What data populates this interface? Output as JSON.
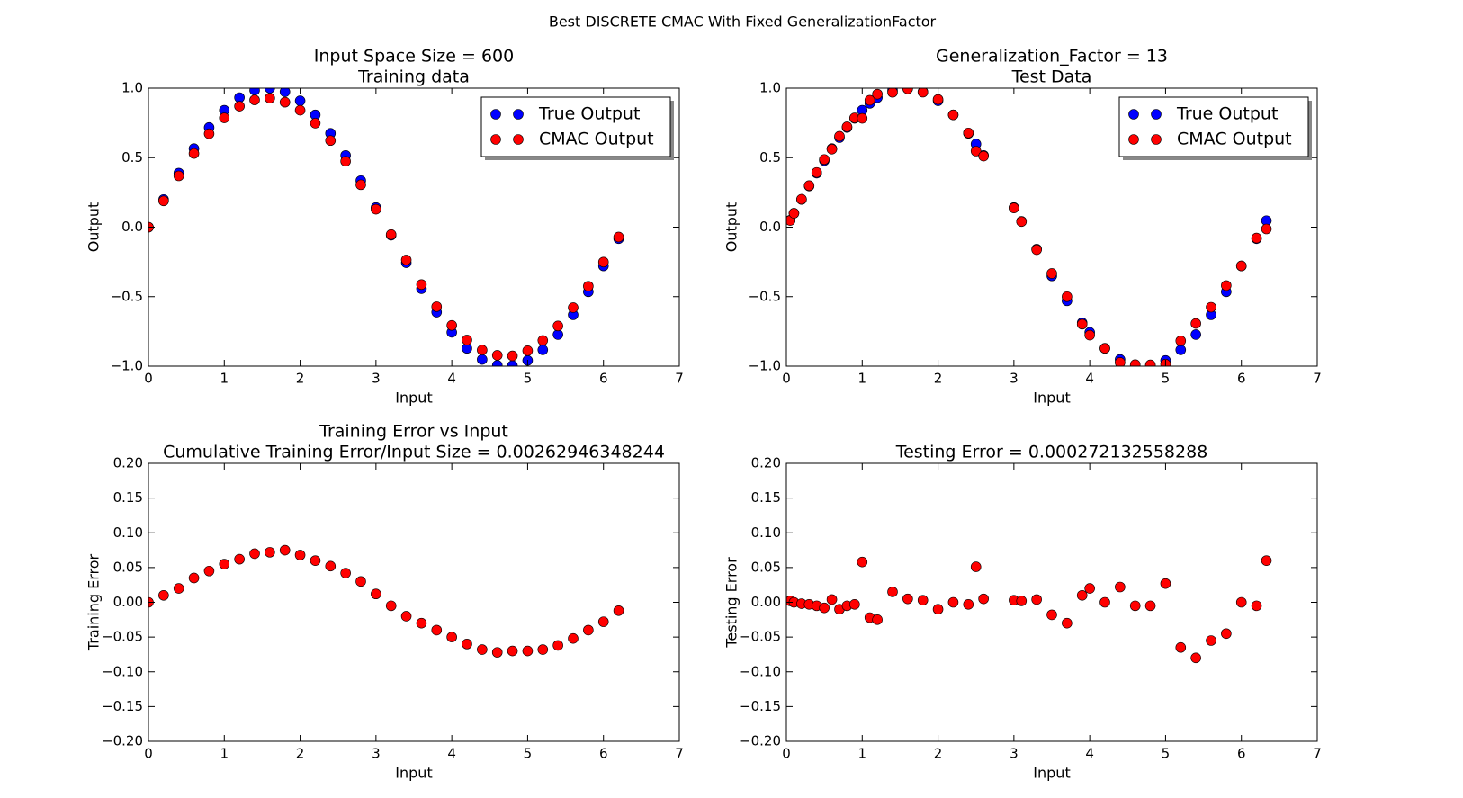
{
  "title": "Best DISCRETE CMAC With Fixed GeneralizationFactor",
  "chart_data": [
    {
      "type": "scatter",
      "title": "Input Space Size = 600",
      "subtitle": "Training data",
      "xlabel": "Input",
      "ylabel": "Output",
      "legend": "upper right",
      "xlim": [
        0,
        7
      ],
      "xticks": [
        0,
        1,
        2,
        3,
        4,
        5,
        6,
        7
      ],
      "ylim": [
        -1,
        1
      ],
      "yticks": [
        {
          "value": -1,
          "label": "−1.0"
        },
        {
          "value": -0.5,
          "label": "−0.5"
        },
        {
          "value": 0,
          "label": "0.0"
        },
        {
          "value": 0.5,
          "label": "0.5"
        },
        {
          "value": 1,
          "label": "1.0"
        }
      ],
      "series": [
        {
          "name": "True Output",
          "color": "#0000ff",
          "x": [
            0,
            0.2,
            0.4,
            0.6,
            0.8,
            1.0,
            1.2,
            1.4,
            1.6,
            1.8,
            2.0,
            2.2,
            2.4,
            2.6,
            2.8,
            3.0,
            3.2,
            3.4,
            3.6,
            3.8,
            4.0,
            4.2,
            4.4,
            4.6,
            4.8,
            5.0,
            5.2,
            5.4,
            5.6,
            5.8,
            6.0,
            6.2
          ],
          "values": [
            0,
            0.199,
            0.389,
            0.565,
            0.717,
            0.841,
            0.932,
            0.985,
            1.0,
            0.974,
            0.909,
            0.808,
            0.675,
            0.516,
            0.335,
            0.141,
            -0.058,
            -0.256,
            -0.443,
            -0.612,
            -0.757,
            -0.872,
            -0.952,
            -0.994,
            -0.996,
            -0.959,
            -0.883,
            -0.773,
            -0.631,
            -0.465,
            -0.279,
            -0.083
          ]
        },
        {
          "name": "CMAC Output",
          "color": "#ff0000",
          "x": [
            0,
            0.2,
            0.4,
            0.6,
            0.8,
            1.0,
            1.2,
            1.4,
            1.6,
            1.8,
            2.0,
            2.2,
            2.4,
            2.6,
            2.8,
            3.0,
            3.2,
            3.4,
            3.6,
            3.8,
            4.0,
            4.2,
            4.4,
            4.6,
            4.8,
            5.0,
            5.2,
            5.4,
            5.6,
            5.8,
            6.0,
            6.2
          ],
          "values": [
            0,
            0.189,
            0.369,
            0.53,
            0.672,
            0.786,
            0.87,
            0.915,
            0.928,
            0.899,
            0.841,
            0.748,
            0.623,
            0.474,
            0.305,
            0.129,
            -0.053,
            -0.236,
            -0.413,
            -0.572,
            -0.707,
            -0.812,
            -0.884,
            -0.922,
            -0.926,
            -0.889,
            -0.815,
            -0.711,
            -0.579,
            -0.425,
            -0.251,
            -0.071
          ]
        }
      ]
    },
    {
      "type": "scatter",
      "title": "Generalization_Factor = 13",
      "subtitle": "Test Data",
      "xlabel": "Input",
      "ylabel": "Output",
      "legend": "upper right",
      "xlim": [
        0,
        7
      ],
      "xticks": [
        0,
        1,
        2,
        3,
        4,
        5,
        6,
        7
      ],
      "ylim": [
        -1,
        1
      ],
      "yticks": [
        {
          "value": -1,
          "label": "−1.0"
        },
        {
          "value": -0.5,
          "label": "−0.5"
        },
        {
          "value": 0,
          "label": "0.0"
        },
        {
          "value": 0.5,
          "label": "0.5"
        },
        {
          "value": 1,
          "label": "1.0"
        }
      ],
      "series": [
        {
          "name": "True Output",
          "color": "#0000ff",
          "x": [
            0.05,
            0.1,
            0.2,
            0.3,
            0.4,
            0.5,
            0.6,
            0.7,
            0.8,
            0.9,
            1.0,
            1.1,
            1.2,
            1.4,
            1.6,
            1.8,
            2.0,
            2.2,
            2.4,
            2.5,
            2.6,
            3.0,
            3.1,
            3.3,
            3.5,
            3.7,
            3.9,
            4.0,
            4.2,
            4.4,
            4.6,
            4.8,
            5.0,
            5.2,
            5.4,
            5.6,
            5.8,
            6.0,
            6.2,
            6.33
          ],
          "values": [
            0.05,
            0.1,
            0.199,
            0.296,
            0.389,
            0.479,
            0.565,
            0.644,
            0.717,
            0.783,
            0.841,
            0.891,
            0.932,
            0.985,
            1.0,
            0.974,
            0.909,
            0.808,
            0.675,
            0.598,
            0.516,
            0.141,
            0.042,
            -0.158,
            -0.351,
            -0.53,
            -0.688,
            -0.757,
            -0.872,
            -0.952,
            -0.994,
            -0.996,
            -0.959,
            -0.883,
            -0.773,
            -0.631,
            -0.465,
            -0.279,
            -0.083,
            0.047
          ]
        },
        {
          "name": "CMAC Output",
          "color": "#ff0000",
          "x": [
            0.05,
            0.1,
            0.2,
            0.3,
            0.4,
            0.5,
            0.6,
            0.7,
            0.8,
            0.9,
            1.0,
            1.1,
            1.2,
            1.4,
            1.6,
            1.8,
            2.0,
            2.2,
            2.4,
            2.5,
            2.6,
            3.0,
            3.1,
            3.3,
            3.5,
            3.7,
            3.9,
            4.0,
            4.2,
            4.4,
            4.6,
            4.8,
            5.0,
            5.2,
            5.4,
            5.6,
            5.8,
            6.0,
            6.2,
            6.33
          ],
          "values": [
            0.048,
            0.1,
            0.201,
            0.299,
            0.394,
            0.487,
            0.561,
            0.654,
            0.722,
            0.786,
            0.783,
            0.913,
            0.957,
            0.97,
            0.995,
            0.971,
            0.919,
            0.808,
            0.678,
            0.547,
            0.511,
            0.138,
            0.04,
            -0.162,
            -0.333,
            -0.5,
            -0.698,
            -0.777,
            -0.872,
            -0.974,
            -0.989,
            -0.991,
            -0.986,
            -0.818,
            -0.693,
            -0.576,
            -0.42,
            -0.279,
            -0.078,
            -0.013
          ]
        }
      ]
    },
    {
      "type": "scatter",
      "title": "Training Error vs Input",
      "subtitle": "Cumulative Training Error/Input Size = 0.00262946348244",
      "xlabel": "Input",
      "ylabel": "Training Error",
      "xlim": [
        0,
        7
      ],
      "xticks": [
        0,
        1,
        2,
        3,
        4,
        5,
        6,
        7
      ],
      "ylim": [
        -0.2,
        0.2
      ],
      "yticks": [
        {
          "value": -0.2,
          "label": "−0.20"
        },
        {
          "value": -0.15,
          "label": "−0.15"
        },
        {
          "value": -0.1,
          "label": "−0.10"
        },
        {
          "value": -0.05,
          "label": "−0.05"
        },
        {
          "value": 0,
          "label": "0.00"
        },
        {
          "value": 0.05,
          "label": "0.05"
        },
        {
          "value": 0.1,
          "label": "0.10"
        },
        {
          "value": 0.15,
          "label": "0.15"
        },
        {
          "value": 0.2,
          "label": "0.20"
        }
      ],
      "series": [
        {
          "color": "#ff0000",
          "x": [
            0,
            0.2,
            0.4,
            0.6,
            0.8,
            1.0,
            1.2,
            1.4,
            1.6,
            1.8,
            2.0,
            2.2,
            2.4,
            2.6,
            2.8,
            3.0,
            3.2,
            3.4,
            3.6,
            3.8,
            4.0,
            4.2,
            4.4,
            4.6,
            4.8,
            5.0,
            5.2,
            5.4,
            5.6,
            5.8,
            6.0,
            6.2
          ],
          "values": [
            0,
            0.01,
            0.02,
            0.035,
            0.045,
            0.055,
            0.062,
            0.07,
            0.072,
            0.075,
            0.068,
            0.06,
            0.052,
            0.042,
            0.03,
            0.012,
            -0.005,
            -0.02,
            -0.03,
            -0.04,
            -0.05,
            -0.06,
            -0.068,
            -0.072,
            -0.07,
            -0.07,
            -0.068,
            -0.062,
            -0.052,
            -0.04,
            -0.028,
            -0.012
          ]
        }
      ]
    },
    {
      "type": "scatter",
      "title": "Testing Error = 0.000272132558288",
      "xlabel": "Input",
      "ylabel": "Testing Error",
      "xlim": [
        0,
        7
      ],
      "xticks": [
        0,
        1,
        2,
        3,
        4,
        5,
        6,
        7
      ],
      "ylim": [
        -0.2,
        0.2
      ],
      "yticks": [
        {
          "value": -0.2,
          "label": "−0.20"
        },
        {
          "value": -0.15,
          "label": "−0.15"
        },
        {
          "value": -0.1,
          "label": "−0.10"
        },
        {
          "value": -0.05,
          "label": "−0.05"
        },
        {
          "value": 0,
          "label": "0.00"
        },
        {
          "value": 0.05,
          "label": "0.05"
        },
        {
          "value": 0.1,
          "label": "0.10"
        },
        {
          "value": 0.15,
          "label": "0.15"
        },
        {
          "value": 0.2,
          "label": "0.20"
        }
      ],
      "series": [
        {
          "color": "#ff0000",
          "x": [
            0.05,
            0.1,
            0.2,
            0.3,
            0.4,
            0.5,
            0.6,
            0.7,
            0.8,
            0.9,
            1.0,
            1.1,
            1.2,
            1.4,
            1.6,
            1.8,
            2.0,
            2.2,
            2.4,
            2.5,
            2.6,
            3.0,
            3.1,
            3.3,
            3.5,
            3.7,
            3.9,
            4.0,
            4.2,
            4.4,
            4.6,
            4.8,
            5.0,
            5.2,
            5.4,
            5.6,
            5.8,
            6.0,
            6.2,
            6.33
          ],
          "values": [
            0.002,
            0,
            -0.002,
            -0.003,
            -0.005,
            -0.008,
            0.004,
            -0.01,
            -0.005,
            -0.003,
            0.058,
            -0.022,
            -0.025,
            0.015,
            0.005,
            0.003,
            -0.01,
            0,
            -0.003,
            0.051,
            0.005,
            0.003,
            0.002,
            0.004,
            -0.018,
            -0.03,
            0.01,
            0.02,
            0,
            0.022,
            -0.005,
            -0.005,
            0.027,
            -0.065,
            -0.08,
            -0.055,
            -0.045,
            0,
            -0.005,
            0.06
          ]
        }
      ]
    }
  ]
}
